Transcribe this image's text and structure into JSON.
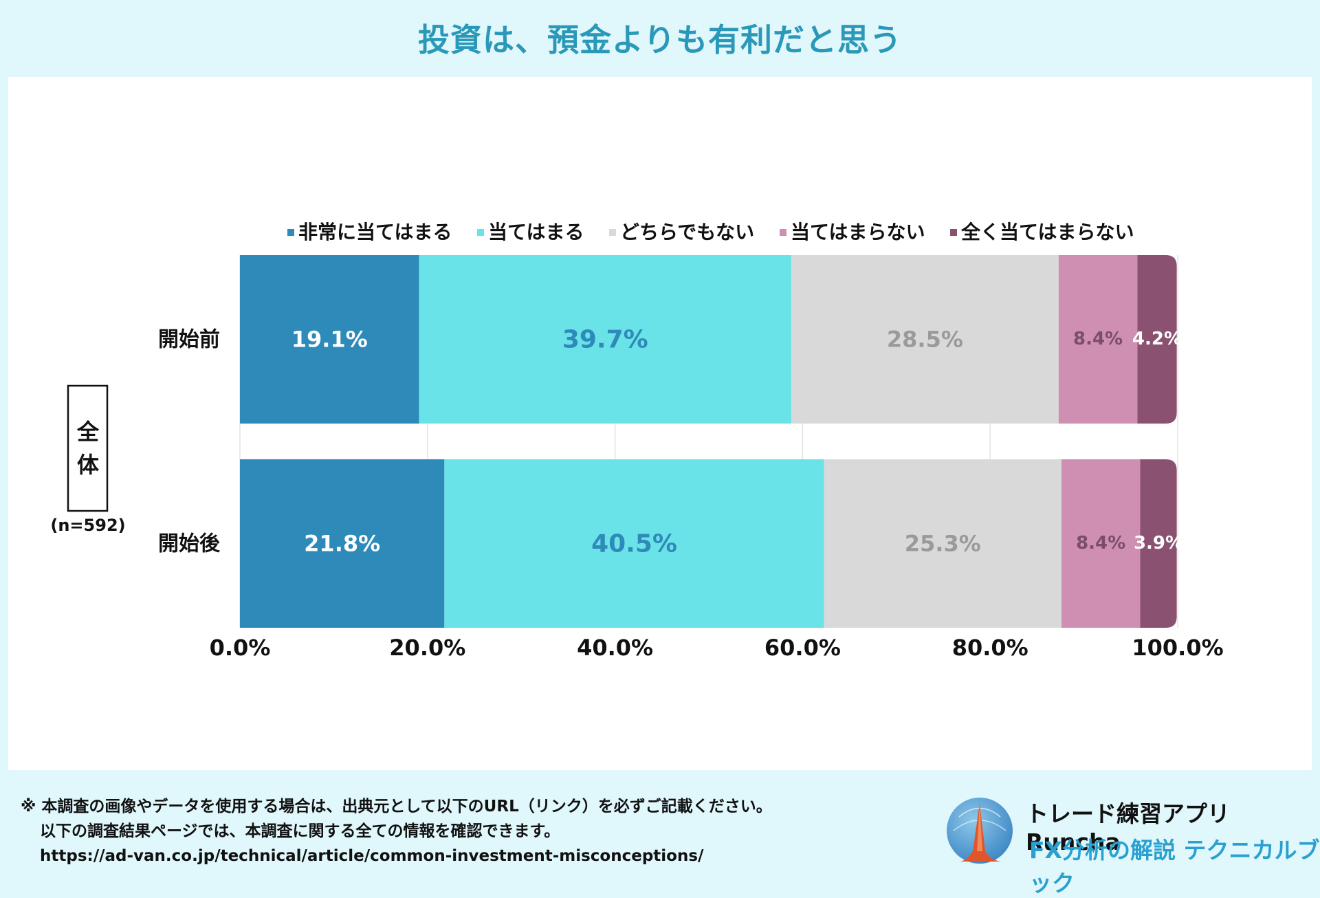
{
  "title": "投資は、預金よりも有利だと思う",
  "group": {
    "label_chars": [
      "全",
      "体"
    ],
    "n_label": "(n=592)"
  },
  "chart_data": {
    "type": "bar",
    "orientation": "horizontal",
    "stacked": true,
    "categories": [
      "開始前",
      "開始後"
    ],
    "series": [
      {
        "name": "非常に当てはまる",
        "color": "#2e8ab8",
        "label_color": "#ffffff",
        "values": [
          19.1,
          21.8
        ],
        "labels": [
          "19.1%",
          "21.8%"
        ]
      },
      {
        "name": "当てはまる",
        "color": "#6ae3e8",
        "label_color": "#2e8ab8",
        "values": [
          39.7,
          40.5
        ],
        "labels": [
          "39.7%",
          "40.5%"
        ]
      },
      {
        "name": "どちらでもない",
        "color": "#d9d9d9",
        "label_color": "#9a9a9a",
        "values": [
          28.5,
          25.3
        ],
        "labels": [
          "28.5%",
          "25.3%"
        ]
      },
      {
        "name": "当てはまらない",
        "color": "#cf8fb2",
        "label_color": "#7a4d6b",
        "values": [
          8.4,
          8.4
        ],
        "labels": [
          "8.4%",
          "8.4%"
        ]
      },
      {
        "name": "全く当てはまらない",
        "color": "#8a5270",
        "label_color": "#ffffff",
        "values": [
          4.2,
          3.9
        ],
        "labels": [
          "4.2%",
          "3.9%"
        ]
      }
    ],
    "xlim": [
      0,
      100
    ],
    "xticks": [
      0,
      20,
      40,
      60,
      80,
      100
    ],
    "xtick_labels": [
      "0.0%",
      "20.0%",
      "40.0%",
      "60.0%",
      "80.0%",
      "100.0%"
    ],
    "legend_position": "top",
    "grid": true
  },
  "footer": {
    "line1": "※ 本調査の画像やデータを使用する場合は、出典元として以下のURL（リンク）を必ずご記載ください。",
    "line2": "以下の調査結果ページでは、本調査に関する全ての情報を確認できます。",
    "line3": "https://ad-van.co.jp/technical/article/common-investment-misconceptions/"
  },
  "brand": {
    "name": "トレード練習アプリ Runcha",
    "tagline": "FX分析の解説 テクニカルブック"
  }
}
